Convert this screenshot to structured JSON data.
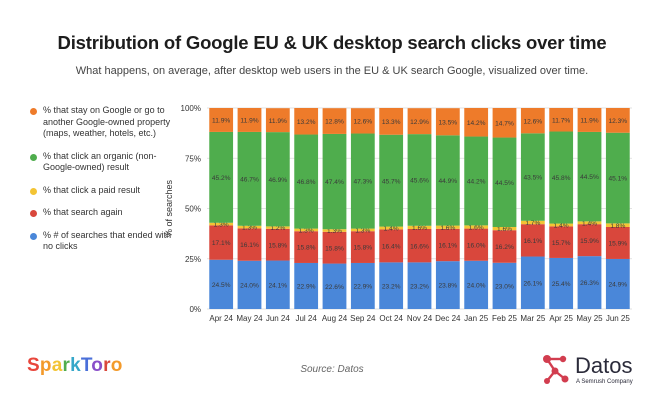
{
  "header": {
    "title": "Distribution of Google EU & UK desktop search clicks over time",
    "subtitle": "What happens, on average, after desktop web users in the EU & UK search Google, visualized over time."
  },
  "legend": [
    {
      "label": "% that stay on Google or go to another Google-owned property (maps, weather, hotels, etc.)",
      "color": "#ee7b2a"
    },
    {
      "label": "% that click an organic (non-Google-owned) result",
      "color": "#4fad4d"
    },
    {
      "label": "% that click a paid result",
      "color": "#f3c434"
    },
    {
      "label": "% that search again",
      "color": "#d9473c"
    },
    {
      "label": "% # of searches that ended with no clicks",
      "color": "#4a87d9"
    }
  ],
  "chart_data": {
    "type": "bar",
    "stacked": true,
    "ylabel": "% of searches",
    "ylim": [
      0,
      100
    ],
    "yticks": [
      "0%",
      "25%",
      "50%",
      "75%",
      "100%"
    ],
    "categories": [
      "Apr 24",
      "May 24",
      "Jun 24",
      "Jul 24",
      "Aug 24",
      "Sep 24",
      "Oct 24",
      "Nov 24",
      "Dec 24",
      "Jan 25",
      "Feb 25",
      "Mar 25",
      "Apr 25",
      "May 25",
      "Jun 25"
    ],
    "series": [
      {
        "color": "#4a87d9",
        "values": [
          24.5,
          24.0,
          24.1,
          22.9,
          22.6,
          22.9,
          23.2,
          23.2,
          23.8,
          24.0,
          23.0,
          26.1,
          25.4,
          26.3,
          24.9
        ],
        "labels": [
          "24.5%",
          "24.0%",
          "24.1%",
          "22.9%",
          "22.6%",
          "22.9%",
          "23.2%",
          "23.2%",
          "23.8%",
          "24.0%",
          "23.0%",
          "26.1%",
          "25.4%",
          "26.3%",
          "24.9%"
        ]
      },
      {
        "color": "#d9473c",
        "values": [
          17.1,
          16.1,
          15.8,
          15.8,
          15.8,
          15.8,
          16.4,
          16.6,
          16.1,
          16.0,
          16.2,
          16.1,
          15.7,
          15.9,
          15.9
        ],
        "labels": [
          "17.1%",
          "16.1%",
          "15.8%",
          "15.8%",
          "15.8%",
          "15.8%",
          "16.4%",
          "16.6%",
          "16.1%",
          "16.0%",
          "16.2%",
          "16.1%",
          "15.7%",
          "15.9%",
          "15.9%"
        ]
      },
      {
        "color": "#f3c434",
        "values": [
          1.3,
          1.3,
          1.2,
          1.3,
          1.3,
          1.3,
          1.4,
          1.6,
          1.6,
          1.6,
          1.6,
          1.7,
          1.4,
          1.4,
          1.8
        ],
        "labels": [
          "1.3%",
          "1.3%",
          "1.2%",
          "1.3%",
          "1.3%",
          "1.3%",
          "1.4%",
          "1.6%",
          "1.6%",
          "1.6%",
          "1.6%",
          "1.7%",
          "1.4%",
          "1.4%",
          "1.8%"
        ]
      },
      {
        "color": "#4fad4d",
        "values": [
          45.2,
          46.7,
          46.9,
          46.8,
          47.4,
          47.3,
          45.7,
          45.6,
          44.9,
          44.2,
          44.5,
          43.5,
          45.8,
          44.5,
          45.1
        ],
        "labels": [
          "45.2%",
          "46.7%",
          "46.9%",
          "46.8%",
          "47.4%",
          "47.3%",
          "45.7%",
          "45.6%",
          "44.9%",
          "44.2%",
          "44.5%",
          "43.5%",
          "45.8%",
          "44.5%",
          "45.1%"
        ]
      },
      {
        "color": "#ee7b2a",
        "values": [
          11.9,
          11.9,
          11.9,
          13.2,
          12.8,
          12.6,
          13.3,
          12.9,
          13.5,
          14.2,
          14.7,
          12.6,
          11.7,
          11.9,
          12.3
        ],
        "labels": [
          "11.9%",
          "11.9%",
          "11.9%",
          "13.2%",
          "12.8%",
          "12.6%",
          "13.3%",
          "12.9%",
          "13.5%",
          "14.2%",
          "14.7%",
          "12.6%",
          "11.7%",
          "11.9%",
          "12.3%"
        ]
      }
    ]
  },
  "footer": {
    "brand_left": "SparkToro",
    "source": "Source: Datos",
    "brand_right": "Datos",
    "brand_right_tag": "A Semrush Company"
  }
}
